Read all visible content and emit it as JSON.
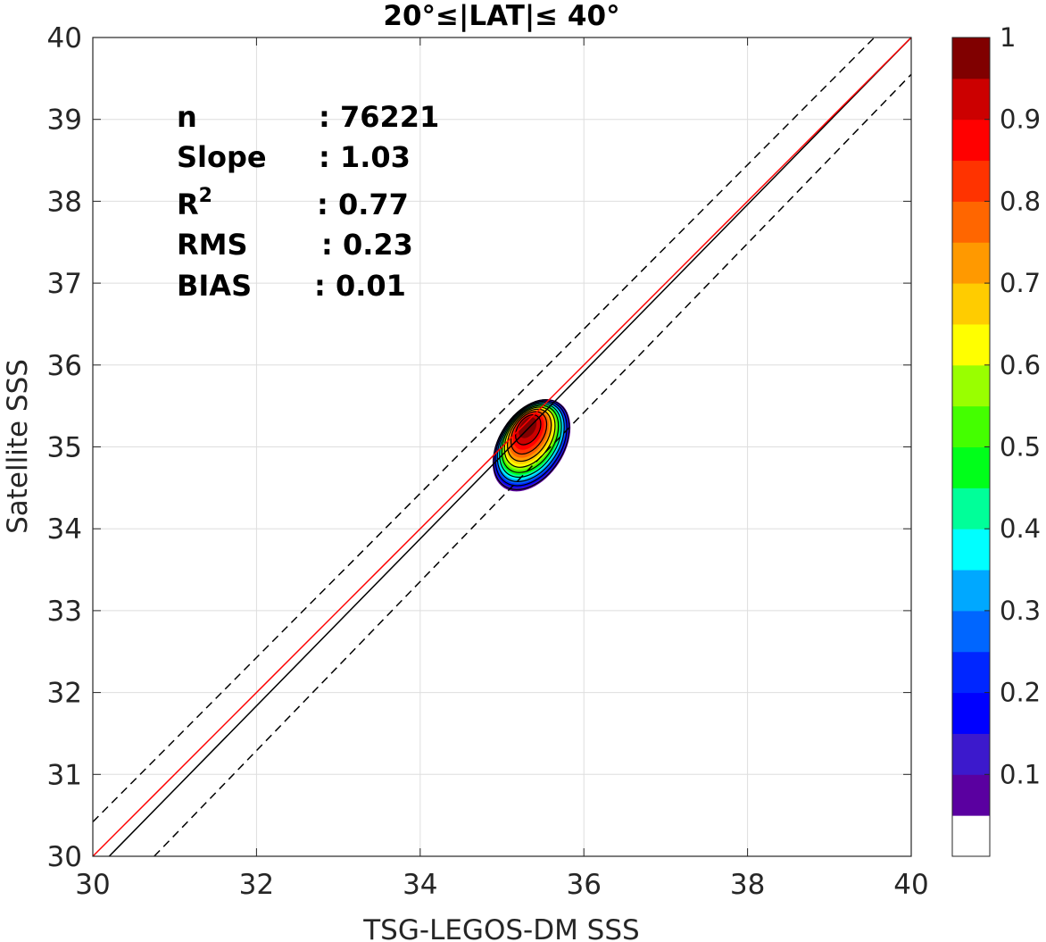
{
  "chart_data": {
    "type": "contour",
    "title": "20°≤|LAT|≤ 40°",
    "xlabel": "TSG-LEGOS-DM SSS",
    "ylabel": "Satellite SSS",
    "xlim": [
      30,
      40
    ],
    "ylim": [
      30,
      40
    ],
    "xticks": [
      "30",
      "32",
      "34",
      "36",
      "38",
      "40"
    ],
    "yticks": [
      "30",
      "31",
      "32",
      "33",
      "34",
      "35",
      "36",
      "37",
      "38",
      "39",
      "40"
    ],
    "grid": true,
    "stats": [
      {
        "label": "n",
        "value": ": 76221"
      },
      {
        "label": "Slope",
        "value": ": 1.03"
      },
      {
        "label": "R",
        "sup": "2",
        "value": ": 0.77"
      },
      {
        "label": "RMS",
        "value": ": 0.23"
      },
      {
        "label": "BIAS",
        "value": ": 0.01"
      }
    ],
    "density_peak": {
      "x": 35.3,
      "y": 35.3
    },
    "lines": [
      {
        "kind": "identity",
        "color": "#000000",
        "style": "solid",
        "points": [
          [
            30.2,
            30
          ],
          [
            40,
            40
          ]
        ]
      },
      {
        "kind": "regression",
        "color": "#ff0000",
        "style": "solid",
        "points": [
          [
            30,
            30
          ],
          [
            40,
            40
          ]
        ]
      },
      {
        "kind": "upper-bound",
        "color": "#000000",
        "style": "dashed",
        "points": [
          [
            30,
            30.42
          ],
          [
            39.55,
            40
          ]
        ]
      },
      {
        "kind": "lower-bound",
        "color": "#000000",
        "style": "dashed",
        "points": [
          [
            30.75,
            30
          ],
          [
            40,
            39.55
          ]
        ]
      }
    ],
    "colorbar": {
      "ticks": [
        "0.1",
        "0.2",
        "0.3",
        "0.4",
        "0.5",
        "0.6",
        "0.7",
        "0.8",
        "0.9",
        "1"
      ],
      "levels": [
        "#ffffff",
        "#5a00a0",
        "#3c19cc",
        "#0000ff",
        "#0026ff",
        "#0066ff",
        "#00a8ff",
        "#00ffff",
        "#00ff99",
        "#00ff1a",
        "#44ff00",
        "#99ff00",
        "#ffff00",
        "#ffcc00",
        "#ff9900",
        "#ff6600",
        "#ff3300",
        "#ff0000",
        "#cc0000",
        "#800000"
      ]
    }
  }
}
